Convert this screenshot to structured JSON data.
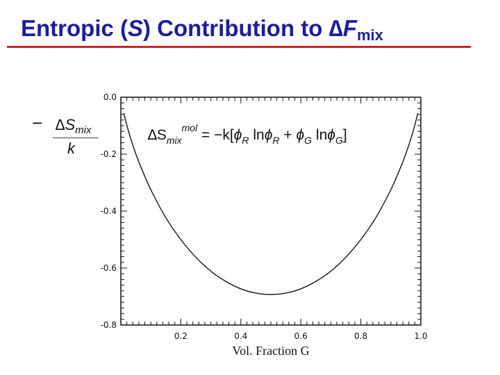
{
  "slide": {
    "title_prefix": "Entropic (",
    "title_symbol": "S",
    "title_mid": ") Contribution to ∆",
    "title_var": "F",
    "title_sub": "mix"
  },
  "equation": {
    "lhs": "∆S",
    "lhs_sub": "mix",
    "lhs_sup": "mol",
    "rhs_prefix": " = −k[",
    "phi1": "ϕ",
    "sub1": "R",
    "ln1": " ln",
    "phi2": "ϕ",
    "sub2": "R",
    "plus": " + ",
    "phi3": "ϕ",
    "sub3": "G",
    "ln2": " ln",
    "phi4": "ϕ",
    "sub4": "G",
    "close": "]"
  },
  "ylabel": {
    "minus": "−",
    "numerator": "∆S",
    "numerator_sub": "mix",
    "denominator": "k"
  },
  "chart_data": {
    "type": "line",
    "xlabel": "Vol. Fraction G",
    "xlim": [
      0.0,
      1.0
    ],
    "ylim": [
      -0.8,
      0.0
    ],
    "xticks": [
      0.2,
      0.4,
      0.6,
      0.8,
      1.0
    ],
    "xtick_labels": [
      "0.2",
      "0.4",
      "0.6",
      "0.8",
      "1.0"
    ],
    "yticks": [
      0.0,
      -0.2,
      -0.4,
      -0.6,
      -0.8
    ],
    "ytick_labels": [
      "0.0",
      "-0.2",
      "-0.4",
      "-0.6",
      "-0.8"
    ],
    "grid": false,
    "series": [
      {
        "x": [
          0.01,
          0.02,
          0.03,
          0.05,
          0.07,
          0.1,
          0.15,
          0.2,
          0.25,
          0.3,
          0.35,
          0.4,
          0.45,
          0.5,
          0.55,
          0.6,
          0.65,
          0.7,
          0.75,
          0.8,
          0.85,
          0.9,
          0.93,
          0.95,
          0.97,
          0.98,
          0.99
        ],
        "y": [
          -0.056,
          -0.098,
          -0.135,
          -0.199,
          -0.253,
          -0.325,
          -0.423,
          -0.5,
          -0.562,
          -0.611,
          -0.647,
          -0.673,
          -0.688,
          -0.693,
          -0.688,
          -0.673,
          -0.647,
          -0.611,
          -0.562,
          -0.5,
          -0.423,
          -0.325,
          -0.253,
          -0.199,
          -0.135,
          -0.098,
          -0.056
        ]
      }
    ]
  }
}
